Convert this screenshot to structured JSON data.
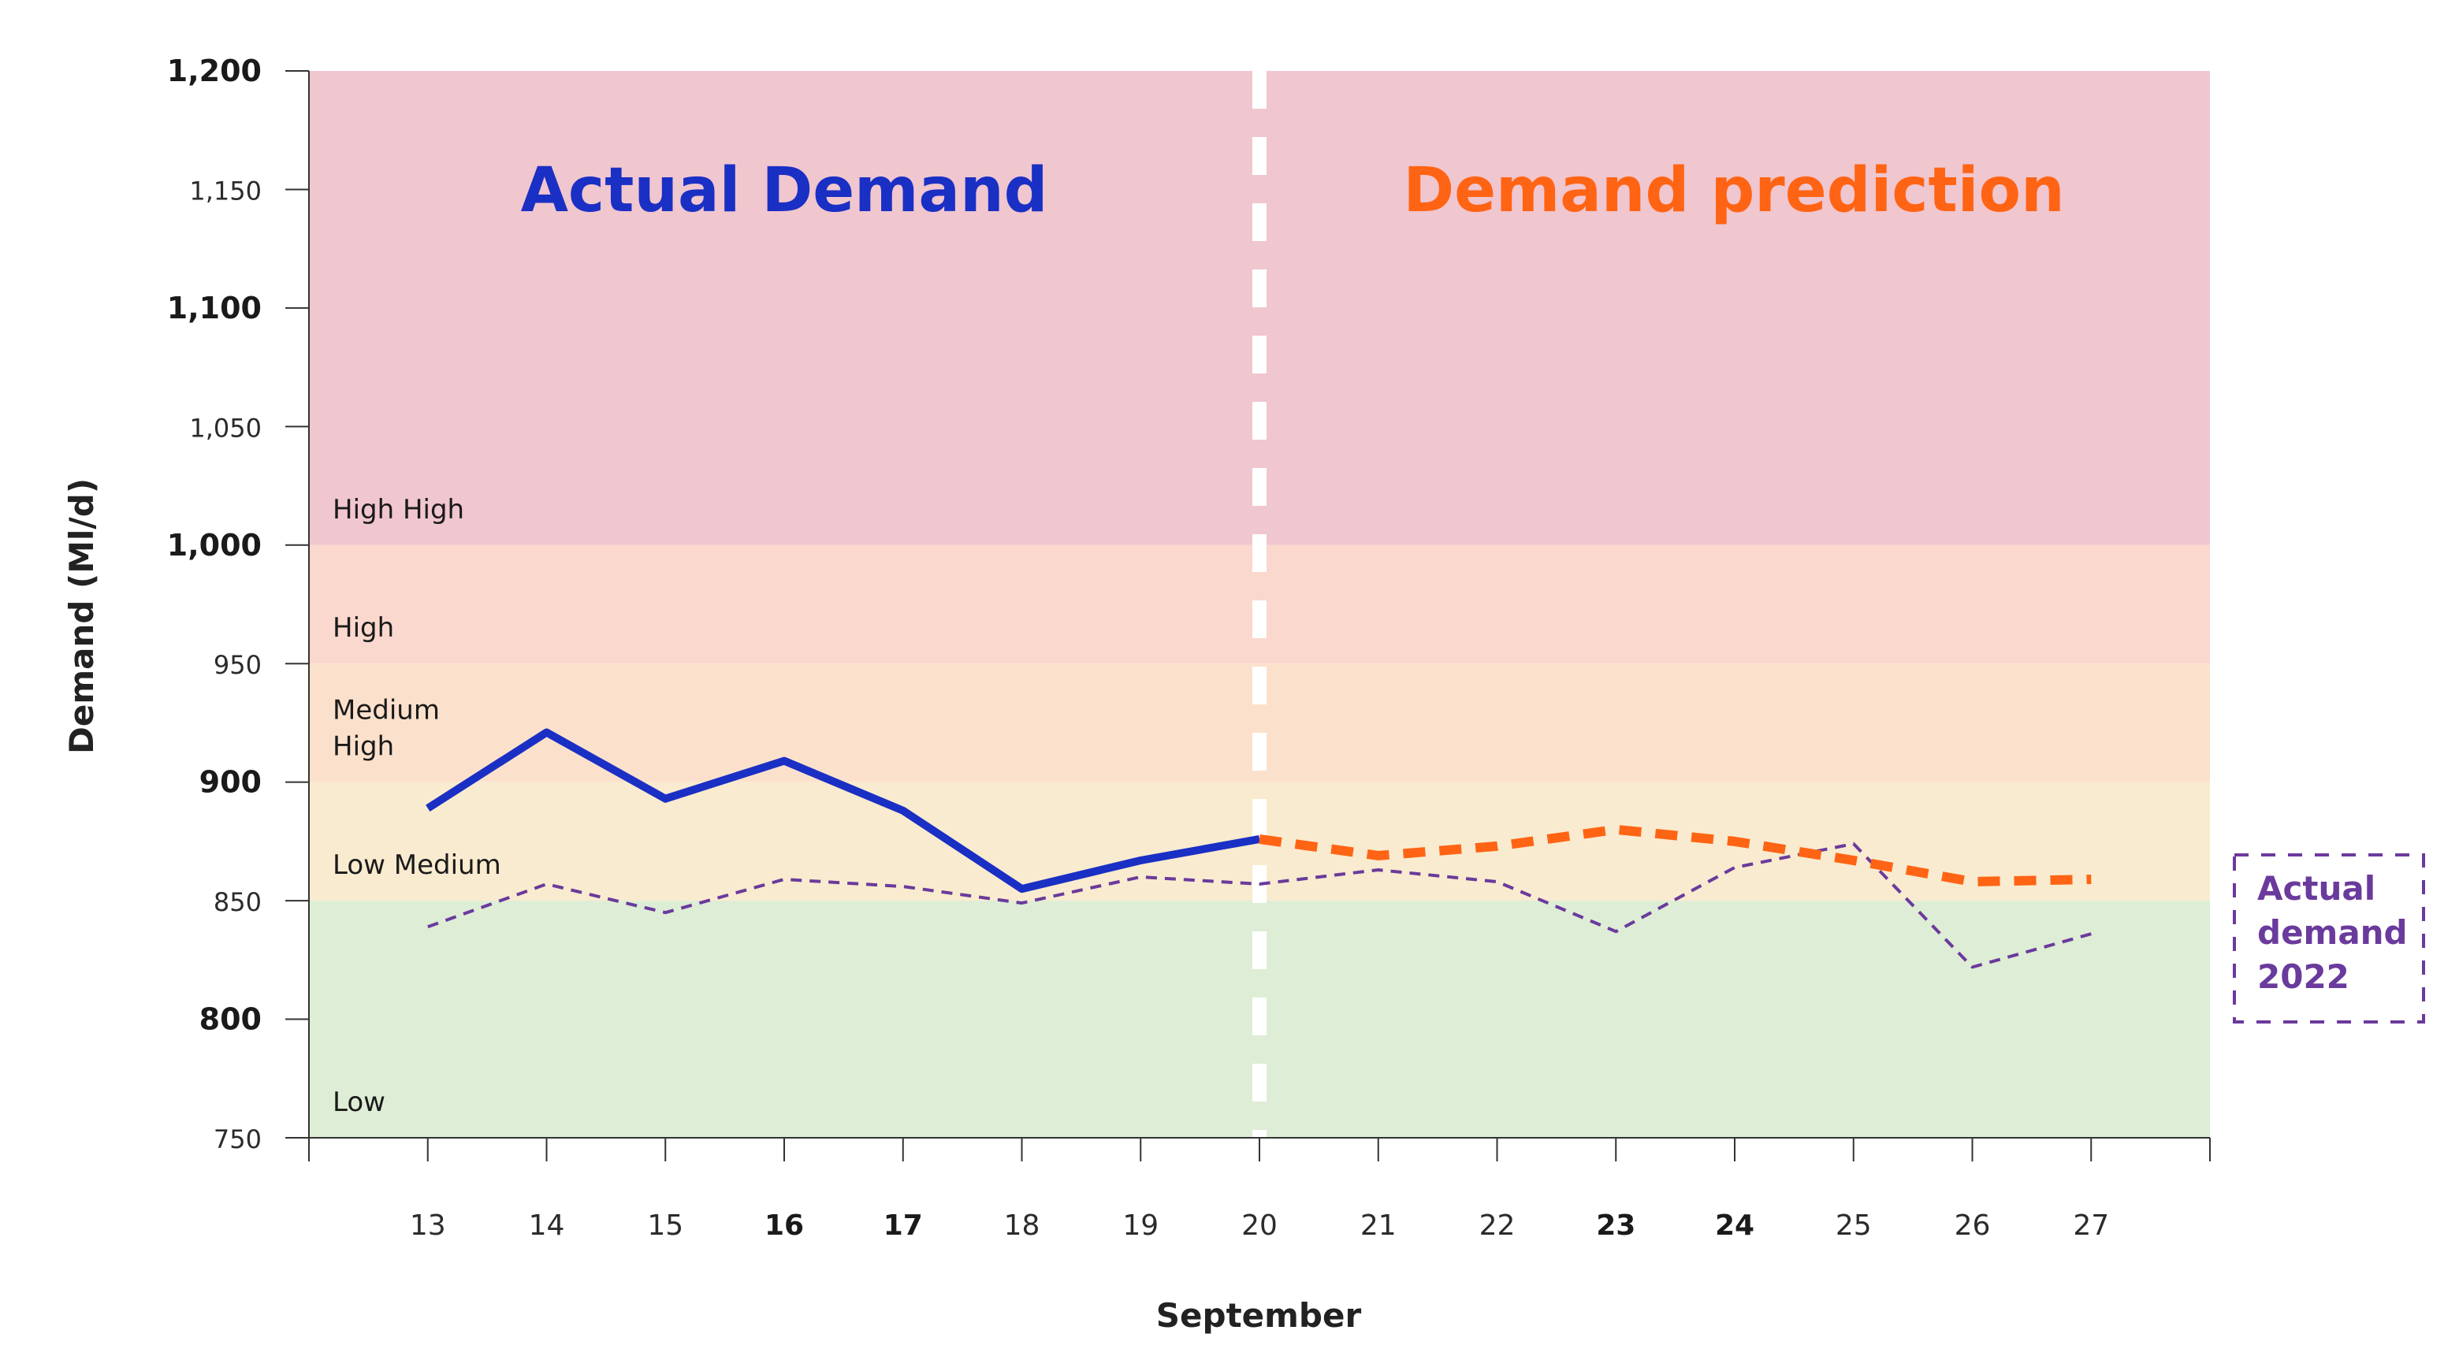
{
  "chart_data": {
    "type": "line",
    "ylabel": "Demand (Ml/d)",
    "xlabel": "September",
    "ylim": [
      750,
      1200
    ],
    "yticks": [
      {
        "value": 1200,
        "label": "1,200",
        "bold": true
      },
      {
        "value": 1150,
        "label": "1,150",
        "bold": false
      },
      {
        "value": 1100,
        "label": "1,100",
        "bold": true
      },
      {
        "value": 1050,
        "label": "1,050",
        "bold": false
      },
      {
        "value": 1000,
        "label": "1,000",
        "bold": true
      },
      {
        "value": 950,
        "label": "950",
        "bold": false
      },
      {
        "value": 900,
        "label": "900",
        "bold": true
      },
      {
        "value": 850,
        "label": "850",
        "bold": false
      },
      {
        "value": 800,
        "label": "800",
        "bold": true
      },
      {
        "value": 750,
        "label": "750",
        "bold": false
      }
    ],
    "x_range": [
      12,
      28
    ],
    "xticks": [
      {
        "value": 13,
        "label": "13",
        "bold": false
      },
      {
        "value": 14,
        "label": "14",
        "bold": false
      },
      {
        "value": 15,
        "label": "15",
        "bold": false
      },
      {
        "value": 16,
        "label": "16",
        "bold": true
      },
      {
        "value": 17,
        "label": "17",
        "bold": true
      },
      {
        "value": 18,
        "label": "18",
        "bold": false
      },
      {
        "value": 19,
        "label": "19",
        "bold": false
      },
      {
        "value": 20,
        "label": "20",
        "bold": false
      },
      {
        "value": 21,
        "label": "21",
        "bold": false
      },
      {
        "value": 22,
        "label": "22",
        "bold": false
      },
      {
        "value": 23,
        "label": "23",
        "bold": true
      },
      {
        "value": 24,
        "label": "24",
        "bold": true
      },
      {
        "value": 25,
        "label": "25",
        "bold": false
      },
      {
        "value": 26,
        "label": "26",
        "bold": false
      },
      {
        "value": 27,
        "label": "27",
        "bold": false
      }
    ],
    "bands": [
      {
        "label": "High High",
        "from": 1000,
        "to": 1200,
        "color": "#f0c6cf"
      },
      {
        "label": "High",
        "from": 950,
        "to": 1000,
        "color": "#fad8cd"
      },
      {
        "label": "Medium High",
        "from": 900,
        "to": 950,
        "color": "#fbe1cc"
      },
      {
        "label": "Low Medium",
        "from": 850,
        "to": 900,
        "color": "#f9ebcf"
      },
      {
        "label": "Low",
        "from": 750,
        "to": 850,
        "color": "#deedd5"
      }
    ],
    "band_label_lines": {
      "High High": [
        "High High"
      ],
      "High": [
        "High"
      ],
      "Medium High": [
        "Medium",
        "High"
      ],
      "Low Medium": [
        "Low Medium"
      ],
      "Low": [
        "Low"
      ]
    },
    "divider_x": 20,
    "regions": [
      {
        "label": "Actual Demand",
        "color": "#1a2fc4"
      },
      {
        "label": "Demand prediction",
        "color": "#ff6414"
      }
    ],
    "series": [
      {
        "name": "Actual Demand",
        "color": "#1a2fc4",
        "style": "solid",
        "x": [
          13,
          14,
          15,
          16,
          17,
          18,
          19,
          20
        ],
        "values": [
          889,
          921,
          893,
          909,
          888,
          855,
          867,
          876
        ]
      },
      {
        "name": "Demand prediction",
        "color": "#ff6414",
        "style": "dashed",
        "x": [
          20,
          21,
          22,
          23,
          24,
          25,
          26,
          27
        ],
        "values": [
          876,
          869,
          873,
          880,
          875,
          867,
          858,
          859
        ]
      },
      {
        "name": "Actual demand 2022",
        "color": "#6a3a9c",
        "style": "dashed-thin",
        "x": [
          13,
          14,
          15,
          16,
          17,
          18,
          19,
          20,
          21,
          22,
          23,
          24,
          25,
          26,
          27
        ],
        "values": [
          839,
          857,
          845,
          859,
          856,
          849,
          860,
          857,
          863,
          858,
          837,
          864,
          874,
          822,
          836
        ]
      }
    ],
    "legend": {
      "lines": [
        "Actual",
        "demand",
        "2022"
      ],
      "color": "#6a3a9c",
      "position": "right"
    }
  }
}
